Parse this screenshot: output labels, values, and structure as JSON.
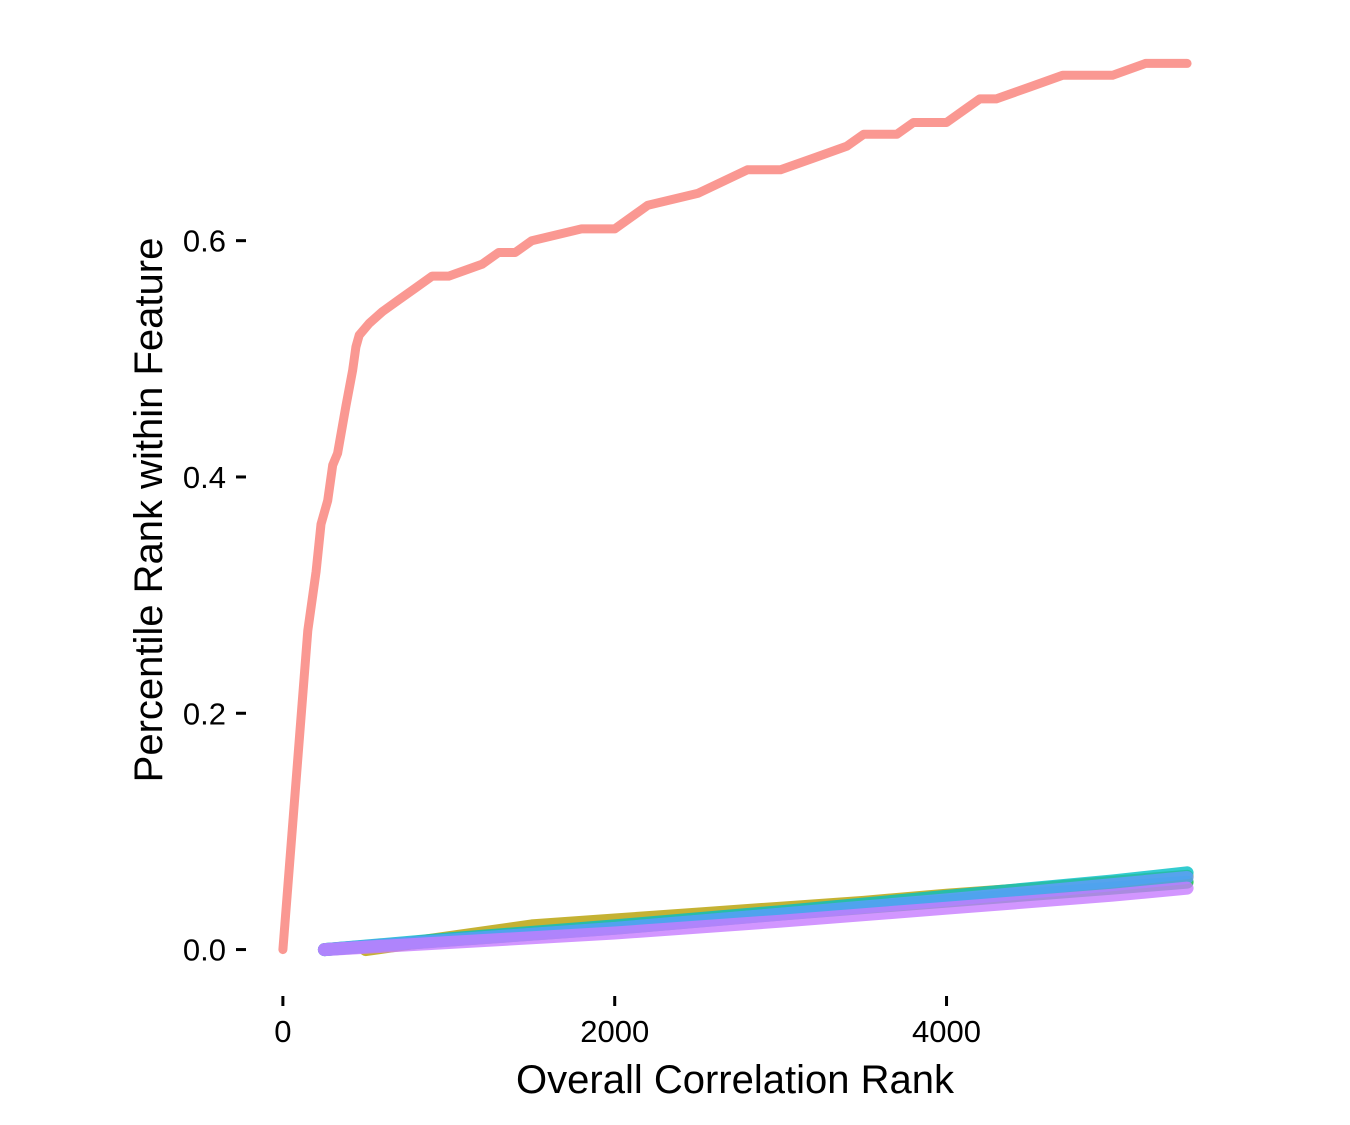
{
  "chart_data": {
    "type": "line",
    "title": "",
    "xlabel": "Overall Correlation Rank",
    "ylabel": "Percentile Rank within Feature",
    "xlim": [
      -150,
      5600
    ],
    "ylim": [
      -0.03,
      0.78
    ],
    "x_ticks": [
      0,
      2000,
      4000
    ],
    "x_tick_labels": [
      "0",
      "2000",
      "4000"
    ],
    "y_ticks": [
      0.0,
      0.2,
      0.4,
      0.6
    ],
    "y_tick_labels": [
      "0.0",
      "0.2",
      "0.4",
      "0.6"
    ],
    "grid": false,
    "legend": "none",
    "series": [
      {
        "color": "#F8766D",
        "x": [
          0,
          50,
          100,
          150,
          200,
          230,
          270,
          300,
          330,
          380,
          420,
          440,
          460,
          520,
          600,
          700,
          800,
          900,
          1000,
          1200,
          1300,
          1400,
          1500,
          1800,
          2000,
          2200,
          2500,
          2800,
          3000,
          3200,
          3400,
          3500,
          3700,
          3800,
          4000,
          4100,
          4200,
          4300,
          4500,
          4700,
          4800,
          5000,
          5200,
          5450
        ],
        "y": [
          0.0,
          0.09,
          0.18,
          0.27,
          0.32,
          0.36,
          0.38,
          0.41,
          0.42,
          0.46,
          0.49,
          0.51,
          0.52,
          0.53,
          0.54,
          0.55,
          0.56,
          0.57,
          0.57,
          0.58,
          0.59,
          0.59,
          0.6,
          0.61,
          0.61,
          0.63,
          0.64,
          0.66,
          0.66,
          0.67,
          0.68,
          0.69,
          0.69,
          0.7,
          0.7,
          0.71,
          0.72,
          0.72,
          0.73,
          0.74,
          0.74,
          0.74,
          0.75,
          0.75
        ]
      },
      {
        "color": "#B79F00",
        "x": [
          500,
          1000,
          1500,
          2000,
          2500,
          3000,
          3500,
          4000,
          4500,
          5000,
          5450
        ],
        "y": [
          0.0,
          0.01,
          0.02,
          0.025,
          0.03,
          0.035,
          0.04,
          0.046,
          0.051,
          0.057,
          0.062
        ]
      },
      {
        "color": "#00BA38",
        "x": [
          250,
          1000,
          2000,
          3000,
          4000,
          5000,
          5450
        ],
        "y": [
          0.0,
          0.008,
          0.018,
          0.03,
          0.041,
          0.052,
          0.057
        ]
      },
      {
        "color": "#00BFC4",
        "x": [
          250,
          1000,
          2000,
          3000,
          4000,
          5000,
          5450
        ],
        "y": [
          0.0,
          0.009,
          0.02,
          0.032,
          0.045,
          0.058,
          0.065
        ]
      },
      {
        "color": "#619CFF",
        "x": [
          250,
          1000,
          2000,
          3000,
          4000,
          5000,
          5450
        ],
        "y": [
          0.0,
          0.008,
          0.018,
          0.03,
          0.042,
          0.055,
          0.061
        ]
      },
      {
        "color": "#C77CFF",
        "x": [
          250,
          1000,
          2000,
          3000,
          4000,
          5000,
          5450
        ],
        "y": [
          0.0,
          0.006,
          0.014,
          0.024,
          0.035,
          0.046,
          0.052
        ]
      }
    ]
  }
}
